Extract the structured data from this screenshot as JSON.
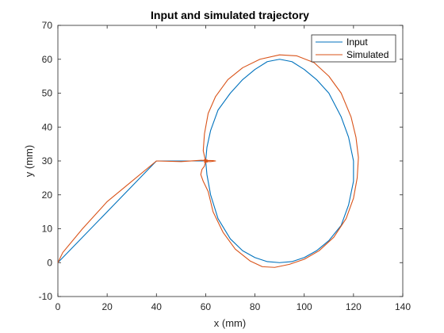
{
  "chart_data": {
    "type": "line",
    "title": "Input and simulated trajectory",
    "xlabel": "x (mm)",
    "ylabel": "y (mm)",
    "xlim": [
      0,
      140
    ],
    "ylim": [
      -10,
      70
    ],
    "xticks": [
      0,
      20,
      40,
      60,
      80,
      100,
      120,
      140
    ],
    "yticks": [
      -10,
      0,
      10,
      20,
      30,
      40,
      50,
      60,
      70
    ],
    "grid": false,
    "legend_position": "top-right",
    "series": [
      {
        "name": "Input",
        "color": "#0072BD",
        "x": [
          0,
          40,
          60,
          60.5,
          62,
          65,
          70,
          75,
          80,
          85,
          90,
          95,
          100,
          105,
          110,
          115,
          118,
          120,
          120,
          118,
          115,
          110,
          105,
          100,
          95,
          90,
          85,
          80,
          75,
          70,
          65,
          62,
          60.5,
          60
        ],
        "y": [
          0,
          30,
          30,
          34,
          39,
          45,
          50,
          54,
          57,
          59.3,
          60,
          59.3,
          57,
          54,
          50,
          43,
          37,
          30,
          24,
          17,
          11,
          6.5,
          3.5,
          1.5,
          0.3,
          0,
          0.3,
          1.5,
          3.5,
          7,
          13,
          20,
          26,
          30
        ]
      },
      {
        "name": "Simulated",
        "color": "#D95319",
        "x": [
          0,
          2,
          10,
          20,
          30,
          40,
          50,
          58,
          63,
          64,
          62,
          60,
          59,
          59.5,
          61,
          64,
          69,
          75,
          82,
          90,
          97,
          104,
          110,
          115,
          119,
          121,
          122,
          121.5,
          120,
          117,
          112,
          106,
          100,
          94,
          88,
          83,
          78,
          72,
          67,
          63,
          61,
          59,
          58,
          58.5,
          59.5,
          60
        ],
        "y": [
          0,
          3,
          10,
          18,
          24,
          30,
          29.8,
          30.2,
          30.1,
          30,
          29.8,
          29.8,
          33,
          38,
          44,
          49,
          54,
          57.5,
          60,
          61.3,
          61,
          59,
          55,
          50,
          43,
          37,
          31,
          25,
          19,
          13,
          7.5,
          3.5,
          1,
          -0.5,
          -1.4,
          -1.2,
          0.5,
          4,
          9,
          15,
          21,
          24,
          26,
          27.5,
          28.5,
          30
        ]
      }
    ]
  }
}
